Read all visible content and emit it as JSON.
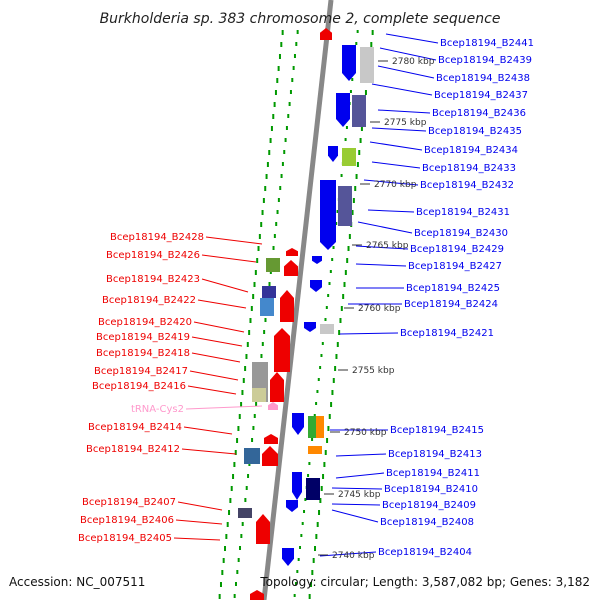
{
  "title": "Burkholderia sp. 383 chromosome 2, complete sequence",
  "accession": "Accession: NC_007511",
  "topology": "Topology: circular; Length: 3,587,082 bp; Genes: 3,182",
  "colors": {
    "forward": "#0000ee",
    "reverse": "#ee0000",
    "trna": "#ff99cc",
    "backbone": "#888888",
    "dots": "#009900"
  },
  "scale": {
    "unit": "kbp",
    "ticks": [
      "2780 kbp",
      "2775 kbp",
      "2770 kbp",
      "2765 kbp",
      "2760 kbp",
      "2755 kbp",
      "2750 kbp",
      "2745 kbp",
      "2740 kbp"
    ]
  },
  "right_labels": [
    "Bcep18194_B2441",
    "Bcep18194_B2439",
    "Bcep18194_B2438",
    "Bcep18194_B2437",
    "Bcep18194_B2436",
    "Bcep18194_B2435",
    "Bcep18194_B2434",
    "Bcep18194_B2433",
    "Bcep18194_B2432",
    "Bcep18194_B2431",
    "Bcep18194_B2430",
    "Bcep18194_B2429",
    "Bcep18194_B2427",
    "Bcep18194_B2425",
    "Bcep18194_B2424",
    "Bcep18194_B2421",
    "Bcep18194_B2415",
    "Bcep18194_B2413",
    "Bcep18194_B2411",
    "Bcep18194_B2410",
    "Bcep18194_B2409",
    "Bcep18194_B2408",
    "Bcep18194_B2404"
  ],
  "left_labels": [
    "Bcep18194_B2428",
    "Bcep18194_B2426",
    "Bcep18194_B2423",
    "Bcep18194_B2422",
    "Bcep18194_B2420",
    "Bcep18194_B2419",
    "Bcep18194_B2418",
    "Bcep18194_B2417",
    "Bcep18194_B2416",
    "tRNA-Cys2",
    "Bcep18194_B2414",
    "Bcep18194_B2412",
    "Bcep18194_B2407",
    "Bcep18194_B2406",
    "Bcep18194_B2405"
  ]
}
